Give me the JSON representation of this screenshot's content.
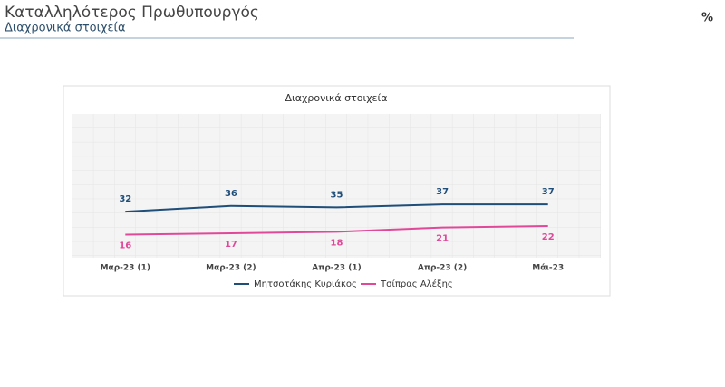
{
  "header": {
    "title": "Καταλληλότερος Πρωθυπουργός",
    "subtitle": "Διαχρονικά στοιχεία",
    "unit": "%"
  },
  "chart_data": {
    "type": "line",
    "title": "Διαχρονικά στοιχεία",
    "categories": [
      "Μαρ-23 (1)",
      "Μαρ-23 (2)",
      "Απρ-23 (1)",
      "Απρ-23 (2)",
      "Μάι-23"
    ],
    "ylim": [
      0,
      100
    ],
    "series": [
      {
        "name": "Μητσοτάκης Κυριάκος",
        "color": "#1f4e79",
        "values": [
          32,
          36,
          35,
          37,
          37
        ]
      },
      {
        "name": "Τσίπρας Αλέξης",
        "color": "#e0499a",
        "values": [
          16,
          17,
          18,
          21,
          22
        ]
      }
    ]
  }
}
